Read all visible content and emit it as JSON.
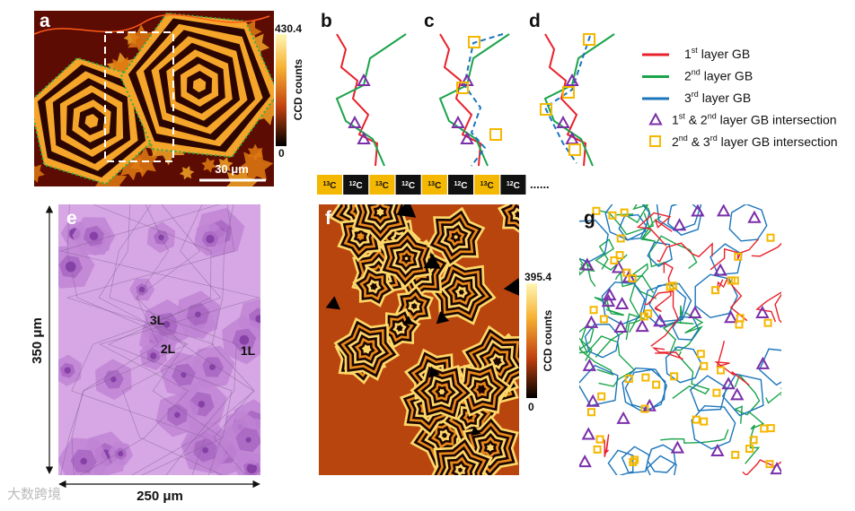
{
  "panels": {
    "a": {
      "label": "a",
      "colorbar": {
        "max": 430.4,
        "min": 0,
        "title": "CCD counts"
      },
      "scale_bar": "30 μm"
    },
    "b": {
      "label": "b"
    },
    "c": {
      "label": "c"
    },
    "d": {
      "label": "d"
    },
    "e": {
      "label": "e",
      "layers": [
        "3L",
        "2L",
        "1L"
      ],
      "height": "350 μm",
      "width": "250 μm"
    },
    "f": {
      "label": "f",
      "colorbar": {
        "max": 395.4,
        "min": 0,
        "title": "CCD counts"
      }
    },
    "g": {
      "label": "g"
    }
  },
  "legend": [
    {
      "kind": "line",
      "color": "#e8212a",
      "parts": [
        {
          "t": "1"
        },
        {
          "sup": "st"
        },
        {
          "t": " layer GB"
        }
      ]
    },
    {
      "kind": "line",
      "color": "#1aa34a",
      "parts": [
        {
          "t": "2"
        },
        {
          "sup": "nd"
        },
        {
          "t": " layer GB"
        }
      ]
    },
    {
      "kind": "line",
      "color": "#1b75bb",
      "parts": [
        {
          "t": "3"
        },
        {
          "sup": "rd"
        },
        {
          "t": " layer GB"
        }
      ]
    },
    {
      "kind": "triangle",
      "color": "#7b2fa8",
      "parts": [
        {
          "t": "1"
        },
        {
          "sup": "st"
        },
        {
          "t": " & 2"
        },
        {
          "sup": "nd"
        },
        {
          "t": " layer GB intersection"
        }
      ]
    },
    {
      "kind": "square",
      "color": "#f5b800",
      "parts": [
        {
          "t": "2"
        },
        {
          "sup": "nd"
        },
        {
          "t": " & 3"
        },
        {
          "sup": "rd"
        },
        {
          "t": " layer GB intersection"
        }
      ]
    }
  ],
  "isotope_sequence": {
    "items": [
      {
        "mass": "13",
        "element": "C"
      },
      {
        "mass": "12",
        "element": "C"
      },
      {
        "mass": "13",
        "element": "C"
      },
      {
        "mass": "12",
        "element": "C"
      },
      {
        "mass": "13",
        "element": "C"
      },
      {
        "mass": "12",
        "element": "C"
      },
      {
        "mass": "13",
        "element": "C"
      },
      {
        "mass": "12",
        "element": "C"
      }
    ],
    "continuation": "......"
  },
  "watermark": "大数跨境"
}
